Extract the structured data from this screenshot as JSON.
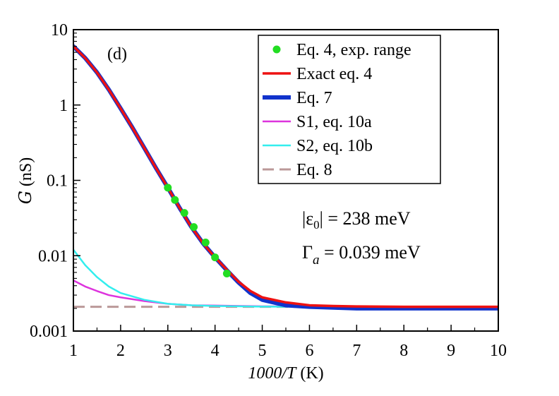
{
  "chart_data": {
    "type": "line",
    "panel_label": "(d)",
    "xlabel": "1000/T (K)",
    "xlabel_parts": {
      "main": "1000/",
      "italic": "T",
      "unit": " (K)"
    },
    "ylabel": "G (nS)",
    "ylabel_parts": {
      "symbol": "G",
      "unit": " (nS)"
    },
    "xlim": [
      1,
      10
    ],
    "ylim": [
      0.001,
      10
    ],
    "yscale": "log",
    "x_ticks": [
      1,
      2,
      3,
      4,
      5,
      6,
      7,
      8,
      9,
      10
    ],
    "x_tick_labels": [
      "1",
      "2",
      "3",
      "4",
      "5",
      "6",
      "7",
      "8",
      "9",
      "10"
    ],
    "y_ticks": [
      0.001,
      0.01,
      0.1,
      1,
      10
    ],
    "y_tick_labels": [
      "0.001",
      "0.01",
      "0.1",
      "1",
      "10"
    ],
    "legend_position": "top-right",
    "series": [
      {
        "name": "Eq. 4, exp. range",
        "kind": "points",
        "color": "#22dd22",
        "x": [
          3.0,
          3.15,
          3.35,
          3.55,
          3.8,
          4.0,
          4.25
        ],
        "y": [
          0.08,
          0.055,
          0.037,
          0.024,
          0.015,
          0.0095,
          0.0058
        ]
      },
      {
        "name": "Exact eq. 4",
        "kind": "line",
        "color": "#ee1111",
        "x": [
          1.0,
          1.25,
          1.5,
          1.75,
          2.0,
          2.25,
          2.5,
          2.75,
          3.0,
          3.25,
          3.5,
          3.75,
          4.0,
          4.25,
          4.5,
          4.75,
          5.0,
          5.5,
          6.0,
          6.5,
          7.0,
          8.0,
          9.0,
          10.0
        ],
        "y": [
          6.0,
          4.2,
          2.7,
          1.6,
          0.9,
          0.5,
          0.27,
          0.145,
          0.08,
          0.043,
          0.024,
          0.0145,
          0.0095,
          0.0065,
          0.0045,
          0.0034,
          0.0028,
          0.0024,
          0.0022,
          0.00215,
          0.00212,
          0.0021,
          0.0021,
          0.0021
        ]
      },
      {
        "name": "Eq. 7",
        "kind": "line",
        "color": "#1133cc",
        "x": [
          1.0,
          1.25,
          1.5,
          1.75,
          2.0,
          2.25,
          2.5,
          2.75,
          3.0,
          3.25,
          3.5,
          3.75,
          4.0,
          4.25,
          4.5,
          4.75,
          5.0,
          5.5,
          6.0,
          6.5,
          7.0,
          8.0,
          9.0,
          10.0
        ],
        "y": [
          6.0,
          4.2,
          2.7,
          1.6,
          0.9,
          0.5,
          0.27,
          0.145,
          0.08,
          0.043,
          0.024,
          0.0145,
          0.0095,
          0.0064,
          0.0044,
          0.0032,
          0.0026,
          0.0022,
          0.0021,
          0.00205,
          0.002,
          0.002,
          0.002,
          0.002
        ]
      },
      {
        "name": "S1, eq. 10a",
        "kind": "line",
        "color": "#dd33dd",
        "x": [
          1.0,
          1.25,
          1.5,
          1.75,
          2.0,
          2.5,
          3.0,
          3.5,
          4.0,
          5.0,
          6.0,
          7.0,
          8.0,
          9.0,
          10.0
        ],
        "y": [
          0.0047,
          0.0039,
          0.0034,
          0.003,
          0.0028,
          0.0025,
          0.0023,
          0.0022,
          0.00218,
          0.00213,
          0.00211,
          0.0021,
          0.0021,
          0.0021,
          0.0021
        ]
      },
      {
        "name": "S2, eq. 10b",
        "kind": "line",
        "color": "#33eeee",
        "x": [
          1.0,
          1.25,
          1.5,
          1.75,
          2.0,
          2.5,
          3.0,
          3.5,
          4.0,
          5.0,
          6.0,
          7.0,
          8.0,
          9.0,
          10.0
        ],
        "y": [
          0.012,
          0.0075,
          0.0052,
          0.0039,
          0.0032,
          0.0026,
          0.0023,
          0.0022,
          0.00215,
          0.00211,
          0.0021,
          0.0021,
          0.0021,
          0.0021,
          0.0021
        ]
      },
      {
        "name": "Eq. 8",
        "kind": "dashed",
        "color": "#bb9999",
        "x": [
          1.0,
          10.0
        ],
        "y": [
          0.0021,
          0.0021
        ]
      }
    ],
    "annotations": [
      {
        "id": "eps",
        "text": "|ε0| = 238 meV",
        "parts": {
          "pre": "|ε",
          "sub": "0",
          "post": "| = 238 meV"
        }
      },
      {
        "id": "gamma",
        "text": "Γa = 0.039 meV",
        "parts": {
          "pre": "Γ",
          "sub": "a",
          "post": " = 0.039 meV"
        }
      }
    ]
  }
}
